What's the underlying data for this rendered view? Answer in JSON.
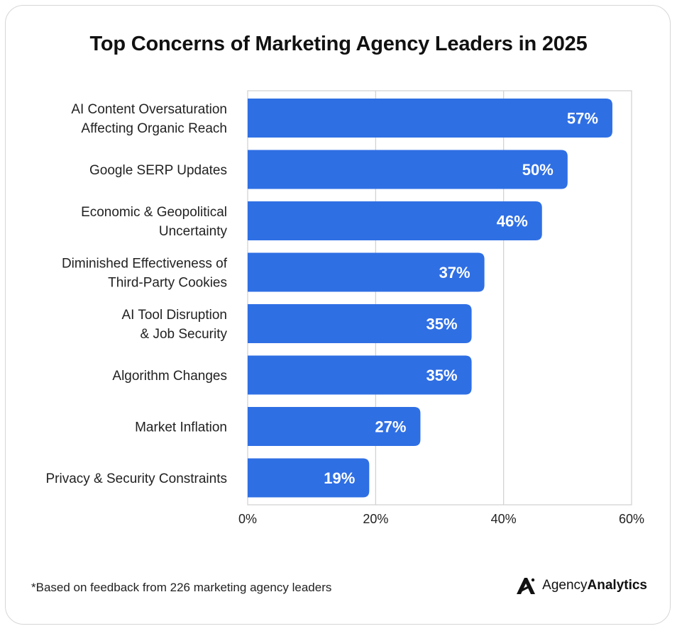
{
  "chart_data": {
    "type": "bar",
    "orientation": "horizontal",
    "title": "Top Concerns of Marketing Agency Leaders in 2025",
    "categories": [
      [
        "AI Content Oversaturation",
        "Affecting Organic Reach"
      ],
      [
        "Google SERP Updates"
      ],
      [
        "Economic & Geopolitical",
        "Uncertainty"
      ],
      [
        "Diminished Effectiveness of",
        "Third-Party Cookies"
      ],
      [
        "AI Tool Disruption",
        "& Job Security"
      ],
      [
        "Algorithm Changes"
      ],
      [
        "Market Inflation"
      ],
      [
        "Privacy & Security Constraints"
      ]
    ],
    "values": [
      57,
      50,
      46,
      37,
      35,
      35,
      27,
      19
    ],
    "value_labels": [
      "57%",
      "50%",
      "46%",
      "37%",
      "35%",
      "35%",
      "27%",
      "19%"
    ],
    "xlim": [
      0,
      60
    ],
    "x_ticks": [
      0,
      20,
      40,
      60
    ],
    "x_tick_labels": [
      "0%",
      "20%",
      "40%",
      "60%"
    ],
    "grid": true,
    "bar_color": "#2f6fe4",
    "grid_color": "#d0d0d0"
  },
  "footnote": "*Based on feedback from 226 marketing agency leaders",
  "logo": {
    "light": "Agency",
    "bold": "Analytics",
    "icon": "agencyanalytics-logo-icon"
  }
}
